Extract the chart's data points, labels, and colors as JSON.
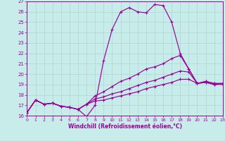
{
  "xlabel": "Windchill (Refroidissement éolien,°C)",
  "xlim": [
    0,
    23
  ],
  "ylim": [
    16,
    27
  ],
  "xticks": [
    0,
    1,
    2,
    3,
    4,
    5,
    6,
    7,
    8,
    9,
    10,
    11,
    12,
    13,
    14,
    15,
    16,
    17,
    18,
    19,
    20,
    21,
    22,
    23
  ],
  "yticks": [
    16,
    17,
    18,
    19,
    20,
    21,
    22,
    23,
    24,
    25,
    26,
    27
  ],
  "bg_color": "#c8ecea",
  "line_color": "#990099",
  "grid_color": "#a8d8d8",
  "curve1_x": [
    0,
    1,
    2,
    3,
    4,
    5,
    6,
    7,
    8,
    9,
    10,
    11,
    12,
    13,
    14,
    15,
    16,
    17,
    18,
    19,
    20,
    21,
    22,
    23
  ],
  "curve1_y": [
    16.3,
    17.5,
    17.1,
    17.2,
    16.9,
    16.8,
    16.6,
    15.9,
    17.0,
    21.3,
    24.3,
    26.0,
    26.4,
    26.0,
    25.9,
    26.7,
    26.6,
    25.0,
    22.0,
    20.5,
    19.1,
    19.2,
    19.0,
    19.1
  ],
  "curve2_x": [
    0,
    1,
    2,
    3,
    4,
    5,
    6,
    7,
    8,
    9,
    10,
    11,
    12,
    13,
    14,
    15,
    16,
    17,
    18,
    19,
    20,
    21,
    22,
    23
  ],
  "curve2_y": [
    16.3,
    17.5,
    17.1,
    17.2,
    16.9,
    16.8,
    16.6,
    17.1,
    17.9,
    18.3,
    18.8,
    19.3,
    19.6,
    20.0,
    20.5,
    20.7,
    21.0,
    21.5,
    21.8,
    20.5,
    19.1,
    19.3,
    19.1,
    19.1
  ],
  "curve3_x": [
    0,
    1,
    2,
    3,
    4,
    5,
    6,
    7,
    8,
    9,
    10,
    11,
    12,
    13,
    14,
    15,
    16,
    17,
    18,
    19,
    20,
    21,
    22,
    23
  ],
  "curve3_y": [
    16.3,
    17.5,
    17.1,
    17.2,
    16.9,
    16.8,
    16.6,
    17.1,
    17.6,
    17.8,
    18.1,
    18.3,
    18.6,
    18.9,
    19.2,
    19.4,
    19.7,
    20.0,
    20.3,
    20.2,
    19.1,
    19.3,
    19.1,
    19.1
  ],
  "curve4_x": [
    0,
    1,
    2,
    3,
    4,
    5,
    6,
    7,
    8,
    9,
    10,
    11,
    12,
    13,
    14,
    15,
    16,
    17,
    18,
    19,
    20,
    21,
    22,
    23
  ],
  "curve4_y": [
    16.3,
    17.5,
    17.1,
    17.2,
    16.9,
    16.8,
    16.6,
    17.1,
    17.4,
    17.5,
    17.7,
    17.9,
    18.1,
    18.3,
    18.6,
    18.8,
    19.0,
    19.2,
    19.5,
    19.5,
    19.1,
    19.2,
    19.0,
    19.0
  ]
}
